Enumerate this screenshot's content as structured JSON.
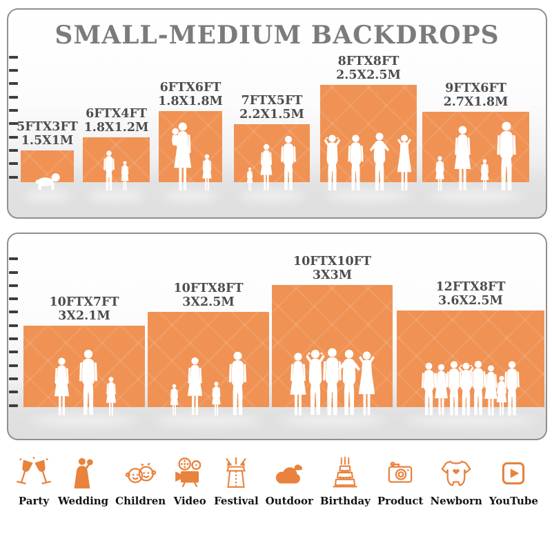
{
  "title": "SMALL-MEDIUM BACKDROPS",
  "colors": {
    "backdrop_orange": "#EF9254",
    "icon_orange": "#E8823C",
    "title_gray": "#7B7B7B",
    "label_gray": "#4D4D4D",
    "floor_gray": "#DFDFDF"
  },
  "panels": [
    {
      "name": "small-backdrops",
      "ruler": [
        "10",
        "9",
        "8",
        "7",
        "6",
        "5",
        "4",
        "3",
        "2",
        "1"
      ],
      "backdrops": [
        {
          "size_ft": "5FTX3FT",
          "size_m": "1.5X1M",
          "figures": [
            "crawling-baby"
          ]
        },
        {
          "size_ft": "6FTX4FT",
          "size_m": "1.8X1.2M",
          "figures": [
            "boy",
            "girl"
          ]
        },
        {
          "size_ft": "6FTX6FT",
          "size_m": "1.8X1.8M",
          "figures": [
            "mother-holding-baby",
            "girl"
          ]
        },
        {
          "size_ft": "7FTX5FT",
          "size_m": "2.2X1.5M",
          "figures": [
            "toddler-girl",
            "woman",
            "man"
          ]
        },
        {
          "size_ft": "8FTX8FT",
          "size_m": "2.5X2.5M",
          "figures": [
            "man-arms-up",
            "man",
            "man-hands-on-hips",
            "woman-arms-up"
          ]
        },
        {
          "size_ft": "9FTX6FT",
          "size_m": "2.7X1.8M",
          "figures": [
            "girl",
            "woman",
            "girl",
            "man"
          ]
        }
      ]
    },
    {
      "name": "medium-backdrops",
      "ruler": [
        "12",
        "11",
        "10",
        "9",
        "8",
        "7",
        "6",
        "5",
        "4",
        "3",
        "2",
        "1"
      ],
      "backdrops": [
        {
          "size_ft": "10FTX7FT",
          "size_m": "3X2.1M",
          "figures": [
            "woman",
            "man",
            "girl"
          ]
        },
        {
          "size_ft": "10FTX8FT",
          "size_m": "3X2.5M",
          "figures": [
            "toddler-girl",
            "woman",
            "girl",
            "man"
          ]
        },
        {
          "size_ft": "10FTX10FT",
          "size_m": "3X3M",
          "figures": [
            "woman",
            "man-arms-up",
            "man",
            "man-hands-on-hips",
            "woman-arms-up"
          ]
        },
        {
          "size_ft": "12FTX8FT",
          "size_m": "3.6X2.5M",
          "figures": [
            "man",
            "woman",
            "man",
            "man-arms-up",
            "man",
            "woman",
            "girl",
            "man"
          ]
        }
      ]
    }
  ],
  "categories": [
    {
      "label": "Party",
      "id": "party",
      "icon": "champagne-glasses-icon"
    },
    {
      "label": "Wedding",
      "id": "wedding",
      "icon": "bride-icon"
    },
    {
      "label": "Children",
      "id": "children",
      "icon": "kids-faces-icon"
    },
    {
      "label": "Video",
      "id": "video",
      "icon": "movie-camera-icon"
    },
    {
      "label": "Festival",
      "id": "festival",
      "icon": "gift-box-icon"
    },
    {
      "label": "Outdoor",
      "id": "outdoor",
      "icon": "cloud-icon"
    },
    {
      "label": "Birthday",
      "id": "birthday",
      "icon": "birthday-cake-icon"
    },
    {
      "label": "Product",
      "id": "product",
      "icon": "camera-icon"
    },
    {
      "label": "Newborn",
      "id": "newborn",
      "icon": "baby-onesie-icon"
    },
    {
      "label": "YouTube",
      "id": "youtube",
      "icon": "play-button-icon"
    }
  ]
}
